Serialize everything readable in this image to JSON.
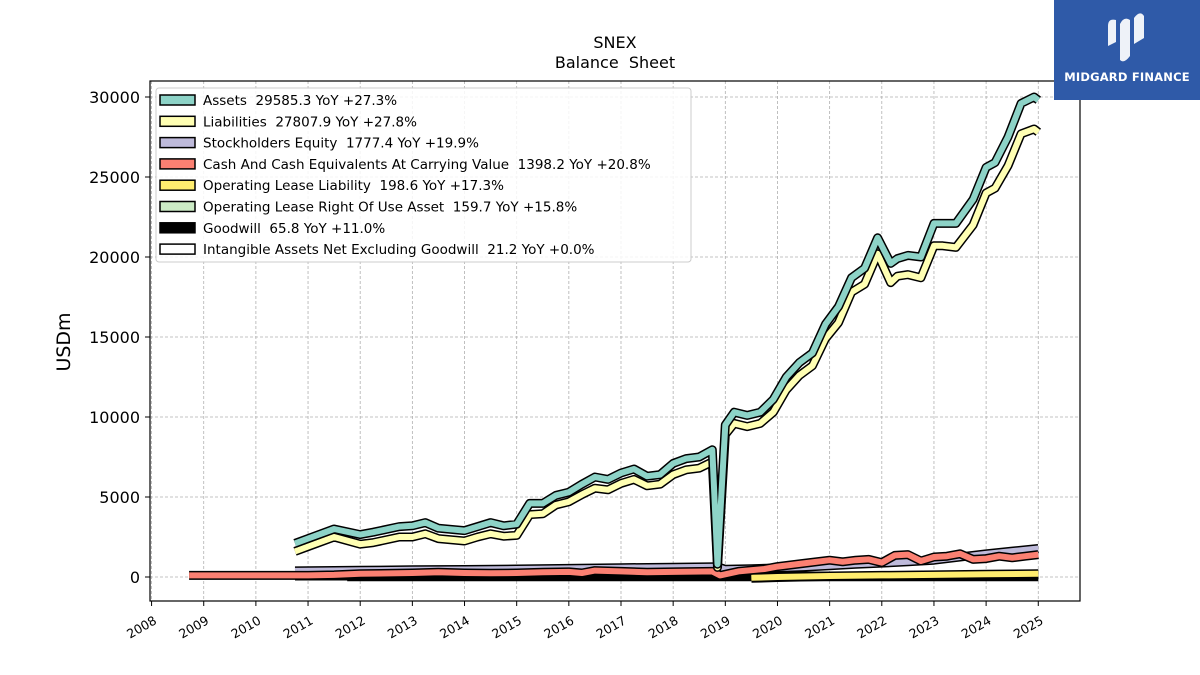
{
  "chart_data": {
    "type": "line",
    "title": "SNEX",
    "subtitle": "Balance  Sheet",
    "ylabel": "USDm",
    "xlabel": "",
    "ylim": [
      -1500,
      31000
    ],
    "xlim": [
      2007.97,
      2025.8
    ],
    "yticks": [
      0,
      5000,
      10000,
      15000,
      20000,
      25000,
      30000
    ],
    "xticks": [
      2008,
      2009,
      2010,
      2011,
      2012,
      2013,
      2014,
      2015,
      2016,
      2017,
      2018,
      2019,
      2020,
      2021,
      2022,
      2023,
      2024,
      2025
    ],
    "grid": true,
    "legend_position": "top-left",
    "series": [
      {
        "legend": "Assets  29585.3 YoY +27.3%",
        "color": "#8dd3c7",
        "x": [
          2010.75,
          2011.0,
          2011.5,
          2012.0,
          2012.25,
          2012.75,
          2013.0,
          2013.25,
          2013.5,
          2014.0,
          2014.25,
          2014.5,
          2014.75,
          2015.0,
          2015.25,
          2015.5,
          2015.75,
          2016.0,
          2016.25,
          2016.5,
          2016.75,
          2017.0,
          2017.25,
          2017.5,
          2017.75,
          2018.0,
          2018.25,
          2018.5,
          2018.75,
          2018.85,
          2019.0,
          2019.17,
          2019.42,
          2019.67,
          2019.92,
          2020.17,
          2020.42,
          2020.67,
          2020.92,
          2021.17,
          2021.42,
          2021.67,
          2021.92,
          2022.17,
          2022.3,
          2022.5,
          2022.75,
          2023.0,
          2023.17,
          2023.42,
          2023.75,
          2024.0,
          2024.17,
          2024.42,
          2024.67,
          2024.92,
          2025.0
        ],
        "y": [
          2100,
          2400,
          3000,
          2650,
          2800,
          3150,
          3200,
          3400,
          3050,
          2900,
          3150,
          3400,
          3200,
          3300,
          4600,
          4600,
          5100,
          5300,
          5800,
          6250,
          6100,
          6500,
          6750,
          6300,
          6400,
          7100,
          7400,
          7500,
          7950,
          800,
          9500,
          10300,
          10100,
          10300,
          11100,
          12500,
          13400,
          14000,
          15800,
          16900,
          18700,
          19300,
          21200,
          19600,
          19900,
          20100,
          20000,
          22100,
          22100,
          22100,
          23600,
          25600,
          25900,
          27500,
          29600,
          30000,
          29800
        ]
      },
      {
        "legend": "Liabilities  27807.9 YoY +27.8%",
        "color": "#ffffb3",
        "x": [
          2010.75,
          2011.0,
          2011.5,
          2012.0,
          2012.25,
          2012.75,
          2013.0,
          2013.25,
          2013.5,
          2014.0,
          2014.25,
          2014.5,
          2014.75,
          2015.0,
          2015.25,
          2015.5,
          2015.75,
          2016.0,
          2016.25,
          2016.5,
          2016.75,
          2017.0,
          2017.25,
          2017.5,
          2017.75,
          2018.0,
          2018.25,
          2018.5,
          2018.75,
          2018.85,
          2019.0,
          2019.17,
          2019.42,
          2019.67,
          2019.92,
          2020.17,
          2020.42,
          2020.67,
          2020.92,
          2021.17,
          2021.42,
          2021.67,
          2021.92,
          2022.17,
          2022.3,
          2022.5,
          2022.75,
          2023.0,
          2023.17,
          2023.42,
          2023.75,
          2024.0,
          2024.17,
          2024.42,
          2024.67,
          2024.92,
          2025.0
        ],
        "y": [
          1600,
          1900,
          2500,
          2050,
          2150,
          2500,
          2500,
          2700,
          2400,
          2250,
          2500,
          2700,
          2550,
          2600,
          3900,
          3950,
          4500,
          4700,
          5150,
          5550,
          5450,
          5850,
          6100,
          5700,
          5800,
          6400,
          6700,
          6800,
          7200,
          600,
          8900,
          9600,
          9400,
          9600,
          10300,
          11700,
          12600,
          13200,
          14900,
          15900,
          17800,
          18300,
          20200,
          18400,
          18800,
          18900,
          18700,
          20700,
          20700,
          20600,
          22000,
          24000,
          24300,
          25700,
          27700,
          28000,
          27800
        ]
      },
      {
        "legend": "Stockholders Equity  1777.4 YoY +19.9%",
        "color": "#bebada",
        "x": [
          2010.75,
          2012,
          2013,
          2014,
          2015,
          2016,
          2017,
          2018,
          2018.85,
          2019,
          2019.5,
          2020,
          2020.5,
          2021,
          2021.5,
          2022,
          2022.5,
          2023,
          2023.5,
          2024,
          2024.5,
          2025.0
        ],
        "y": [
          380,
          420,
          450,
          470,
          500,
          540,
          580,
          610,
          640,
          480,
          520,
          560,
          620,
          700,
          800,
          870,
          950,
          1050,
          1250,
          1450,
          1620,
          1780
        ]
      },
      {
        "legend": "Cash And Cash Equivalents At Carrying Value  1398.2 YoY +20.8%",
        "color": "#fb8072",
        "x": [
          2008.72,
          2009,
          2010,
          2011,
          2011.5,
          2012,
          2013,
          2013.5,
          2014,
          2014.5,
          2015,
          2015.5,
          2016,
          2016.25,
          2016.5,
          2017,
          2017.5,
          2018,
          2018.75,
          2018.9,
          2019.25,
          2019.75,
          2020,
          2020.5,
          2021,
          2021.25,
          2021.5,
          2021.75,
          2022,
          2022.25,
          2022.5,
          2022.75,
          2023,
          2023.25,
          2023.5,
          2023.75,
          2024,
          2024.25,
          2024.5,
          2024.75,
          2025.0
        ],
        "y": [
          100,
          100,
          100,
          100,
          130,
          200,
          250,
          300,
          250,
          230,
          250,
          300,
          320,
          250,
          400,
          350,
          300,
          320,
          350,
          100,
          350,
          500,
          650,
          850,
          1050,
          950,
          1050,
          1100,
          900,
          1350,
          1400,
          1000,
          1250,
          1300,
          1450,
          1100,
          1150,
          1300,
          1200,
          1300,
          1400
        ]
      },
      {
        "legend": "Operating Lease Liability  198.6 YoY +17.3%",
        "color": "#ffed6f",
        "x": [
          2019.5,
          2020,
          2021,
          2022,
          2023,
          2024,
          2025.0
        ],
        "y": [
          -50,
          0,
          60,
          100,
          130,
          170,
          199
        ]
      },
      {
        "legend": "Operating Lease Right Of Use Asset  159.7 YoY +15.8%",
        "color": "#ccebc5",
        "x": [
          2019.5,
          2020,
          2021,
          2022,
          2023,
          2024,
          2025.0
        ],
        "y": [
          -80,
          -30,
          40,
          80,
          110,
          140,
          160
        ]
      },
      {
        "legend": "Goodwill  65.8 YoY +11.0%",
        "color": "#000000",
        "x": [
          2010.75,
          2015,
          2020,
          2025.0
        ],
        "y": [
          60,
          60,
          60,
          66
        ]
      },
      {
        "legend": "Intangible Assets Net Excluding Goodwill  21.2 YoY +0.0%",
        "color": "#ffffff",
        "x": [
          2011.75,
          2015,
          2020,
          2025.0
        ],
        "y": [
          21,
          21,
          21,
          21
        ]
      }
    ]
  },
  "logo": {
    "text": "MIDGARD FINANCE",
    "color": "#2f5aa8"
  }
}
